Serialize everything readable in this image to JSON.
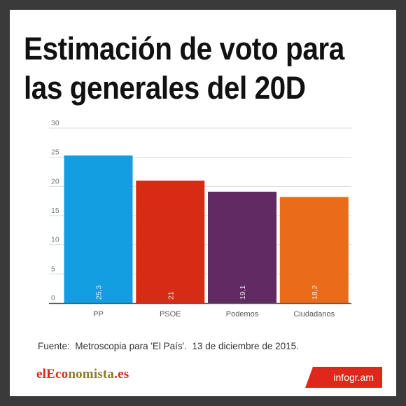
{
  "title": "Estimación de voto para las generales del 20D",
  "source": "Fuente:  Metroscopia para 'El País'.  13 de diciembre de 2015.",
  "brand": {
    "p1": "elEco",
    "p2": "nomista",
    "p3": ".es"
  },
  "badge": "infogr.am",
  "chart_data": {
    "type": "bar",
    "categories": [
      "PP",
      "PSOE",
      "Podemos",
      "Ciudadanos"
    ],
    "values": [
      25.3,
      21,
      19.1,
      18.2
    ],
    "value_labels": [
      "25,3",
      "21",
      "19,1",
      "18,2"
    ],
    "colors": [
      "#129ee0",
      "#d82b14",
      "#5f2b62",
      "#ea6c1a"
    ],
    "yticks": [
      0,
      5,
      10,
      15,
      20,
      25,
      30
    ],
    "ylim": [
      0,
      30
    ],
    "grid": true
  }
}
